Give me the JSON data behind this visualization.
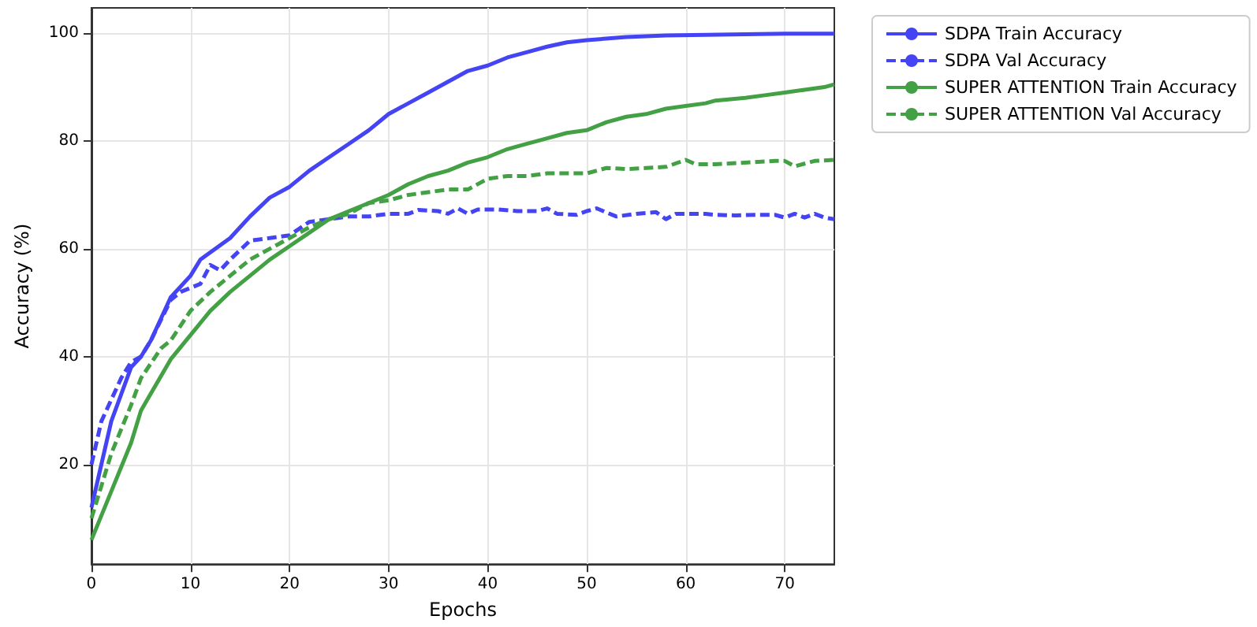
{
  "chart_data": {
    "type": "line",
    "xlabel": "Epochs",
    "ylabel": "Accuracy (%)",
    "xlim": [
      0,
      75
    ],
    "xticks": [
      0,
      10,
      20,
      30,
      40,
      50,
      60,
      70
    ],
    "ylim": [
      1.5,
      104.7
    ],
    "yticks": [
      20,
      40,
      60,
      80,
      100
    ],
    "grid": true,
    "legend": "top right",
    "marker": "none",
    "series": [
      {
        "name": "SDPA Train Accuracy",
        "color": "#4444f4",
        "line_style": "solid",
        "x": [
          0,
          2,
          4,
          5,
          6,
          8,
          10,
          11,
          14,
          16,
          18,
          20,
          22,
          24,
          26,
          28,
          30,
          32,
          34,
          36,
          38,
          40,
          42,
          44,
          46,
          48,
          50,
          54,
          58,
          62,
          66,
          70,
          75
        ],
        "values": [
          12,
          28,
          38,
          40,
          43,
          51,
          55,
          58,
          62,
          66,
          69.5,
          71.5,
          74.5,
          77,
          79.5,
          82,
          85,
          87,
          89,
          91,
          93,
          94,
          95.5,
          96.5,
          97.5,
          98.3,
          98.7,
          99.3,
          99.6,
          99.7,
          99.8,
          99.9,
          99.9
        ]
      },
      {
        "name": "SDPA Val Accuracy",
        "color": "#4444f4",
        "line_style": "dashed",
        "x": [
          0,
          1,
          3,
          4,
          5,
          6,
          8,
          9,
          11,
          12,
          13,
          14,
          16,
          18,
          20,
          22,
          24,
          26,
          28,
          30,
          32,
          33,
          35,
          36,
          37,
          38,
          39,
          41,
          43,
          45,
          46,
          47,
          49,
          50,
          51,
          53,
          55,
          57,
          58,
          59,
          62,
          63,
          65,
          67,
          69,
          70,
          71,
          72,
          73,
          74,
          75
        ],
        "values": [
          20,
          28,
          36,
          39,
          40,
          43,
          50.5,
          52,
          53.5,
          57,
          56,
          58,
          61.5,
          62,
          62.5,
          65,
          65.5,
          66,
          66,
          66.5,
          66.5,
          67.2,
          67,
          66.5,
          67.5,
          66.5,
          67.3,
          67.3,
          67,
          67,
          67.5,
          66.5,
          66.3,
          67,
          67.5,
          66,
          66.5,
          66.8,
          65.5,
          66.5,
          66.5,
          66.3,
          66.2,
          66.3,
          66.3,
          65.8,
          66.5,
          65.8,
          66.5,
          65.8,
          65.5
        ]
      },
      {
        "name": "SUPER ATTENTION Train Accuracy",
        "color": "#44a044",
        "line_style": "solid",
        "x": [
          0,
          2,
          4,
          5,
          8,
          10,
          12,
          14,
          16,
          18,
          20,
          22,
          24,
          26,
          28,
          30,
          32,
          34,
          36,
          38,
          40,
          42,
          44,
          46,
          48,
          50,
          52,
          54,
          56,
          58,
          60,
          62,
          63,
          66,
          68,
          70,
          72,
          74,
          75
        ],
        "values": [
          6,
          15,
          24,
          30,
          39.5,
          44,
          48.5,
          52,
          55,
          58,
          60.5,
          63,
          65.5,
          67,
          68.5,
          70,
          72,
          73.5,
          74.5,
          76,
          77,
          78.5,
          79.5,
          80.5,
          81.5,
          82,
          83.5,
          84.5,
          85,
          86,
          86.5,
          87,
          87.5,
          88,
          88.5,
          89,
          89.5,
          90,
          90.5
        ]
      },
      {
        "name": "SUPER ATTENTION Val Accuracy",
        "color": "#44a044",
        "line_style": "dashed",
        "x": [
          0,
          2,
          4,
          5,
          7,
          8,
          10,
          12,
          14,
          16,
          18,
          20,
          22,
          24,
          26,
          28,
          30,
          32,
          34,
          36,
          38,
          40,
          42,
          44,
          46,
          48,
          50,
          52,
          54,
          56,
          58,
          60,
          61,
          63,
          66,
          69,
          70,
          71,
          73,
          75
        ],
        "values": [
          10,
          22,
          31,
          36,
          41.5,
          43,
          48.5,
          52,
          55,
          58,
          60,
          62,
          64,
          65.5,
          66.5,
          68.5,
          69,
          70,
          70.5,
          71,
          71,
          73,
          73.5,
          73.5,
          74,
          74,
          74,
          75,
          74.8,
          75,
          75.2,
          76.5,
          75.7,
          75.7,
          76,
          76.3,
          76.3,
          75.3,
          76.3,
          76.5
        ]
      }
    ]
  }
}
